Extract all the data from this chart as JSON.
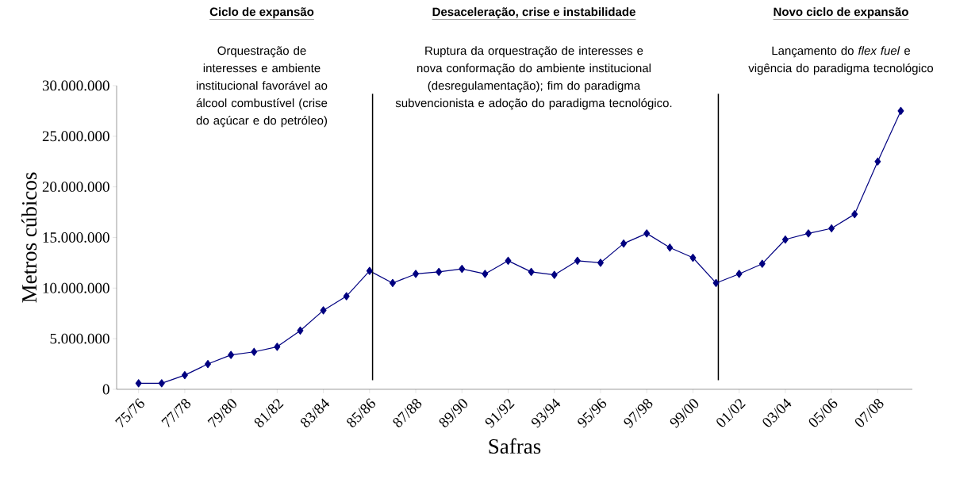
{
  "chart_data": {
    "type": "line",
    "xlabel": "Safras",
    "ylabel": "Metros cúbicos",
    "categories": [
      "75/76",
      null,
      "77/78",
      null,
      "79/80",
      null,
      "81/82",
      null,
      "83/84",
      null,
      "85/86",
      null,
      "87/88",
      null,
      "89/90",
      null,
      "91/92",
      null,
      "93/94",
      null,
      "95/96",
      null,
      "97/98",
      null,
      "99/00",
      null,
      "01/02",
      null,
      "03/04",
      null,
      "05/06",
      null,
      "07/08",
      null
    ],
    "series": [
      {
        "color": "#000080",
        "values": [
          600000,
          600000,
          1400000,
          2500000,
          3400000,
          3700000,
          4200000,
          5800000,
          7800000,
          9200000,
          11700000,
          10500000,
          11400000,
          11600000,
          11900000,
          11400000,
          12700000,
          11600000,
          11300000,
          12700000,
          12500000,
          14400000,
          15400000,
          14000000,
          13000000,
          10500000,
          11400000,
          12400000,
          14800000,
          15400000,
          15900000,
          17300000,
          22500000,
          27500000
        ]
      }
    ],
    "ylim": [
      0,
      30000000
    ],
    "yticks": [
      {
        "value": 0,
        "label": "0"
      },
      {
        "value": 5000000,
        "label": "5.000.000"
      },
      {
        "value": 10000000,
        "label": "10.000.000"
      },
      {
        "value": 15000000,
        "label": "15.000.000"
      },
      {
        "value": 20000000,
        "label": "20.000.000"
      },
      {
        "value": 25000000,
        "label": "25.000.000"
      },
      {
        "value": 30000000,
        "label": "30.000.000"
      }
    ],
    "annotations": [
      "Ciclo de expansão",
      "Orquestração de interesses e ambiente institucional favorável ao álcool combustível (crise do açúcar e do petróleo)",
      "Desaceleração, crise e instabilidade",
      "Ruptura da orquestração de interesses e nova conformação do ambiente institucional (desregulamentação); fim do paradigma subvencionista e adoção do paradigma tecnológico.",
      "Novo ciclo de expansão",
      "Lançamento do *flex fuel* e vigência do paradigma tecnológico"
    ],
    "marker": "diamond",
    "line_style": "solid",
    "grid": false
  }
}
